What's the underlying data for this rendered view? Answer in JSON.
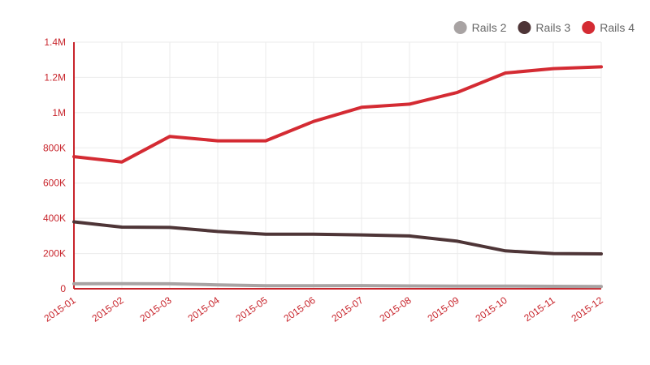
{
  "chart_data": {
    "type": "line",
    "title": "",
    "xlabel": "",
    "ylabel": "",
    "categories": [
      "2015-01",
      "2015-02",
      "2015-03",
      "2015-04",
      "2015-05",
      "2015-06",
      "2015-07",
      "2015-08",
      "2015-09",
      "2015-10",
      "2015-11",
      "2015-12"
    ],
    "ylim": [
      0,
      1400000
    ],
    "yticks": [
      {
        "value": 0,
        "label": "0"
      },
      {
        "value": 200000,
        "label": "200K"
      },
      {
        "value": 400000,
        "label": "400K"
      },
      {
        "value": 600000,
        "label": "600K"
      },
      {
        "value": 800000,
        "label": "800K"
      },
      {
        "value": 1000000,
        "label": "1M"
      },
      {
        "value": 1200000,
        "label": "1.2M"
      },
      {
        "value": 1400000,
        "label": "1.4M"
      }
    ],
    "grid": true,
    "legend_position": "top-right",
    "series": [
      {
        "name": "Rails 2",
        "color": "#a8a3a3",
        "values": [
          28000,
          29000,
          28000,
          22000,
          17000,
          17000,
          18000,
          16000,
          15000,
          15000,
          14000,
          13000
        ]
      },
      {
        "name": "Rails 3",
        "color": "#4e3537",
        "values": [
          380000,
          350000,
          348000,
          325000,
          310000,
          310000,
          306000,
          300000,
          270000,
          215000,
          200000,
          198000
        ]
      },
      {
        "name": "Rails 4",
        "color": "#d42b33",
        "values": [
          750000,
          720000,
          865000,
          840000,
          840000,
          950000,
          1030000,
          1048000,
          1115000,
          1225000,
          1250000,
          1260000
        ]
      }
    ]
  }
}
